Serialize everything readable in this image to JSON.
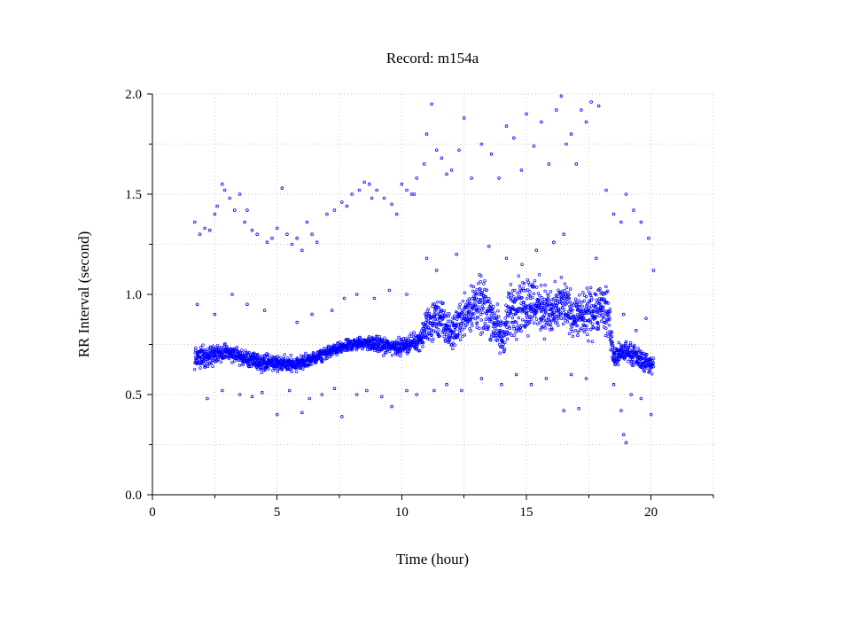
{
  "chart_data": {
    "type": "scatter",
    "title": "Record:  m154a",
    "xlabel": "Time (hour)",
    "ylabel": "RR Interval (second)",
    "xlim": [
      0,
      22.5
    ],
    "ylim": [
      0,
      2.0
    ],
    "x_ticks": [
      0,
      5,
      10,
      15,
      20
    ],
    "x_tick_labels": [
      "0",
      "5",
      "10",
      "15",
      "20"
    ],
    "x_minor_ticks": [
      2.5,
      7.5,
      12.5,
      17.5,
      22.5
    ],
    "y_ticks": [
      0,
      0.5,
      1.0,
      1.5,
      2.0
    ],
    "y_tick_labels": [
      "0.0",
      "0.5",
      "1.0",
      "1.5",
      "2.0"
    ],
    "y_minor_ticks": [
      0.25,
      0.75,
      1.25,
      1.75
    ],
    "grid": true,
    "marker_color": "#0000ff",
    "series": [
      {
        "trend": [
          [
            1.7,
            0.68,
            0.05
          ],
          [
            2.5,
            0.7,
            0.05
          ],
          [
            3.0,
            0.71,
            0.04
          ],
          [
            3.5,
            0.69,
            0.04
          ],
          [
            4.0,
            0.67,
            0.04
          ],
          [
            4.5,
            0.66,
            0.04
          ],
          [
            5.0,
            0.66,
            0.04
          ],
          [
            5.5,
            0.65,
            0.04
          ],
          [
            6.0,
            0.66,
            0.04
          ],
          [
            6.5,
            0.68,
            0.03
          ],
          [
            7.0,
            0.71,
            0.03
          ],
          [
            7.5,
            0.73,
            0.03
          ],
          [
            8.0,
            0.75,
            0.03
          ],
          [
            8.5,
            0.76,
            0.03
          ],
          [
            9.0,
            0.75,
            0.04
          ],
          [
            9.5,
            0.74,
            0.04
          ],
          [
            10.0,
            0.74,
            0.04
          ],
          [
            10.5,
            0.76,
            0.04
          ],
          [
            10.8,
            0.78,
            0.05
          ],
          [
            11.0,
            0.85,
            0.1
          ],
          [
            11.5,
            0.88,
            0.11
          ],
          [
            12.0,
            0.8,
            0.08
          ],
          [
            12.5,
            0.9,
            0.1
          ],
          [
            13.0,
            0.95,
            0.14
          ],
          [
            13.5,
            0.92,
            0.13
          ],
          [
            14.0,
            0.78,
            0.1
          ],
          [
            14.5,
            0.95,
            0.16
          ],
          [
            15.0,
            0.96,
            0.15
          ],
          [
            15.5,
            0.95,
            0.14
          ],
          [
            16.0,
            0.9,
            0.12
          ],
          [
            16.5,
            0.95,
            0.12
          ],
          [
            17.0,
            0.88,
            0.1
          ],
          [
            17.5,
            0.9,
            0.12
          ],
          [
            18.0,
            0.95,
            0.12
          ],
          [
            18.3,
            0.9,
            0.12
          ],
          [
            18.5,
            0.68,
            0.06
          ],
          [
            19.0,
            0.72,
            0.05
          ],
          [
            19.5,
            0.68,
            0.05
          ],
          [
            20.0,
            0.65,
            0.05
          ],
          [
            20.1,
            0.64,
            0.05
          ]
        ],
        "outliers": [
          [
            1.7,
            1.36
          ],
          [
            1.9,
            1.3
          ],
          [
            2.1,
            1.33
          ],
          [
            2.3,
            1.32
          ],
          [
            2.5,
            1.4
          ],
          [
            2.6,
            1.44
          ],
          [
            2.8,
            1.55
          ],
          [
            2.9,
            1.52
          ],
          [
            3.1,
            1.48
          ],
          [
            3.3,
            1.42
          ],
          [
            3.5,
            1.5
          ],
          [
            3.7,
            1.36
          ],
          [
            3.8,
            1.42
          ],
          [
            4.0,
            1.32
          ],
          [
            4.2,
            1.3
          ],
          [
            4.6,
            1.26
          ],
          [
            4.8,
            1.28
          ],
          [
            5.0,
            1.33
          ],
          [
            5.2,
            1.53
          ],
          [
            5.4,
            1.3
          ],
          [
            5.6,
            1.25
          ],
          [
            5.8,
            1.28
          ],
          [
            6.0,
            1.22
          ],
          [
            6.2,
            1.36
          ],
          [
            6.4,
            1.3
          ],
          [
            6.6,
            1.26
          ],
          [
            7.0,
            1.4
          ],
          [
            7.3,
            1.42
          ],
          [
            7.6,
            1.46
          ],
          [
            7.8,
            1.44
          ],
          [
            8.0,
            1.5
          ],
          [
            8.3,
            1.52
          ],
          [
            8.5,
            1.56
          ],
          [
            8.7,
            1.55
          ],
          [
            8.8,
            1.48
          ],
          [
            9.0,
            1.52
          ],
          [
            9.3,
            1.48
          ],
          [
            9.6,
            1.45
          ],
          [
            9.8,
            1.4
          ],
          [
            10.0,
            1.55
          ],
          [
            10.2,
            1.52
          ],
          [
            10.4,
            1.5
          ],
          [
            10.5,
            1.5
          ],
          [
            10.6,
            1.58
          ],
          [
            10.9,
            1.65
          ],
          [
            11.0,
            1.8
          ],
          [
            11.2,
            1.95
          ],
          [
            11.4,
            1.72
          ],
          [
            11.6,
            1.68
          ],
          [
            11.8,
            1.6
          ],
          [
            12.0,
            1.62
          ],
          [
            12.3,
            1.72
          ],
          [
            12.5,
            1.88
          ],
          [
            12.8,
            1.58
          ],
          [
            13.2,
            1.75
          ],
          [
            13.6,
            1.7
          ],
          [
            13.9,
            1.58
          ],
          [
            14.2,
            1.84
          ],
          [
            14.5,
            1.78
          ],
          [
            14.8,
            1.62
          ],
          [
            15.0,
            1.9
          ],
          [
            15.3,
            1.74
          ],
          [
            15.6,
            1.86
          ],
          [
            15.9,
            1.65
          ],
          [
            16.2,
            1.92
          ],
          [
            16.4,
            1.99
          ],
          [
            16.6,
            1.75
          ],
          [
            16.8,
            1.8
          ],
          [
            17.0,
            1.65
          ],
          [
            17.2,
            1.92
          ],
          [
            17.4,
            1.86
          ],
          [
            17.6,
            1.96
          ],
          [
            17.9,
            1.94
          ],
          [
            18.2,
            1.52
          ],
          [
            18.5,
            1.4
          ],
          [
            18.8,
            1.36
          ],
          [
            19.0,
            1.5
          ],
          [
            19.3,
            1.42
          ],
          [
            19.6,
            1.36
          ],
          [
            19.9,
            1.28
          ],
          [
            20.1,
            1.12
          ],
          [
            18.9,
            0.3
          ],
          [
            19.0,
            0.26
          ],
          [
            18.8,
            0.42
          ],
          [
            16.5,
            0.42
          ],
          [
            17.1,
            0.43
          ],
          [
            20.0,
            0.4
          ],
          [
            5.0,
            0.4
          ],
          [
            6.0,
            0.41
          ],
          [
            7.6,
            0.39
          ],
          [
            9.6,
            0.44
          ],
          [
            2.2,
            0.48
          ],
          [
            2.8,
            0.52
          ],
          [
            3.5,
            0.5
          ],
          [
            4.0,
            0.49
          ],
          [
            4.4,
            0.51
          ],
          [
            5.5,
            0.52
          ],
          [
            6.3,
            0.48
          ],
          [
            6.8,
            0.5
          ],
          [
            7.3,
            0.53
          ],
          [
            8.2,
            0.5
          ],
          [
            8.6,
            0.52
          ],
          [
            9.2,
            0.49
          ],
          [
            10.2,
            0.52
          ],
          [
            10.6,
            0.5
          ],
          [
            11.3,
            0.52
          ],
          [
            11.8,
            0.55
          ],
          [
            12.4,
            0.52
          ],
          [
            13.2,
            0.58
          ],
          [
            14.0,
            0.55
          ],
          [
            14.6,
            0.6
          ],
          [
            15.2,
            0.55
          ],
          [
            15.8,
            0.58
          ],
          [
            16.8,
            0.6
          ],
          [
            17.4,
            0.58
          ],
          [
            18.5,
            0.55
          ],
          [
            19.2,
            0.5
          ],
          [
            19.6,
            0.48
          ],
          [
            1.8,
            0.95
          ],
          [
            2.5,
            0.9
          ],
          [
            3.2,
            1.0
          ],
          [
            3.8,
            0.95
          ],
          [
            4.5,
            0.92
          ],
          [
            5.8,
            0.86
          ],
          [
            6.4,
            0.9
          ],
          [
            7.2,
            0.92
          ],
          [
            7.7,
            0.98
          ],
          [
            8.2,
            1.0
          ],
          [
            8.9,
            0.98
          ],
          [
            9.5,
            1.02
          ],
          [
            10.2,
            1.0
          ],
          [
            11.0,
            1.18
          ],
          [
            11.4,
            1.12
          ],
          [
            12.2,
            1.2
          ],
          [
            13.5,
            1.24
          ],
          [
            14.2,
            1.18
          ],
          [
            15.4,
            1.22
          ],
          [
            16.1,
            1.26
          ],
          [
            16.5,
            1.3
          ],
          [
            17.8,
            1.18
          ],
          [
            18.9,
            0.9
          ],
          [
            19.4,
            0.82
          ],
          [
            19.8,
            0.88
          ]
        ]
      }
    ]
  }
}
